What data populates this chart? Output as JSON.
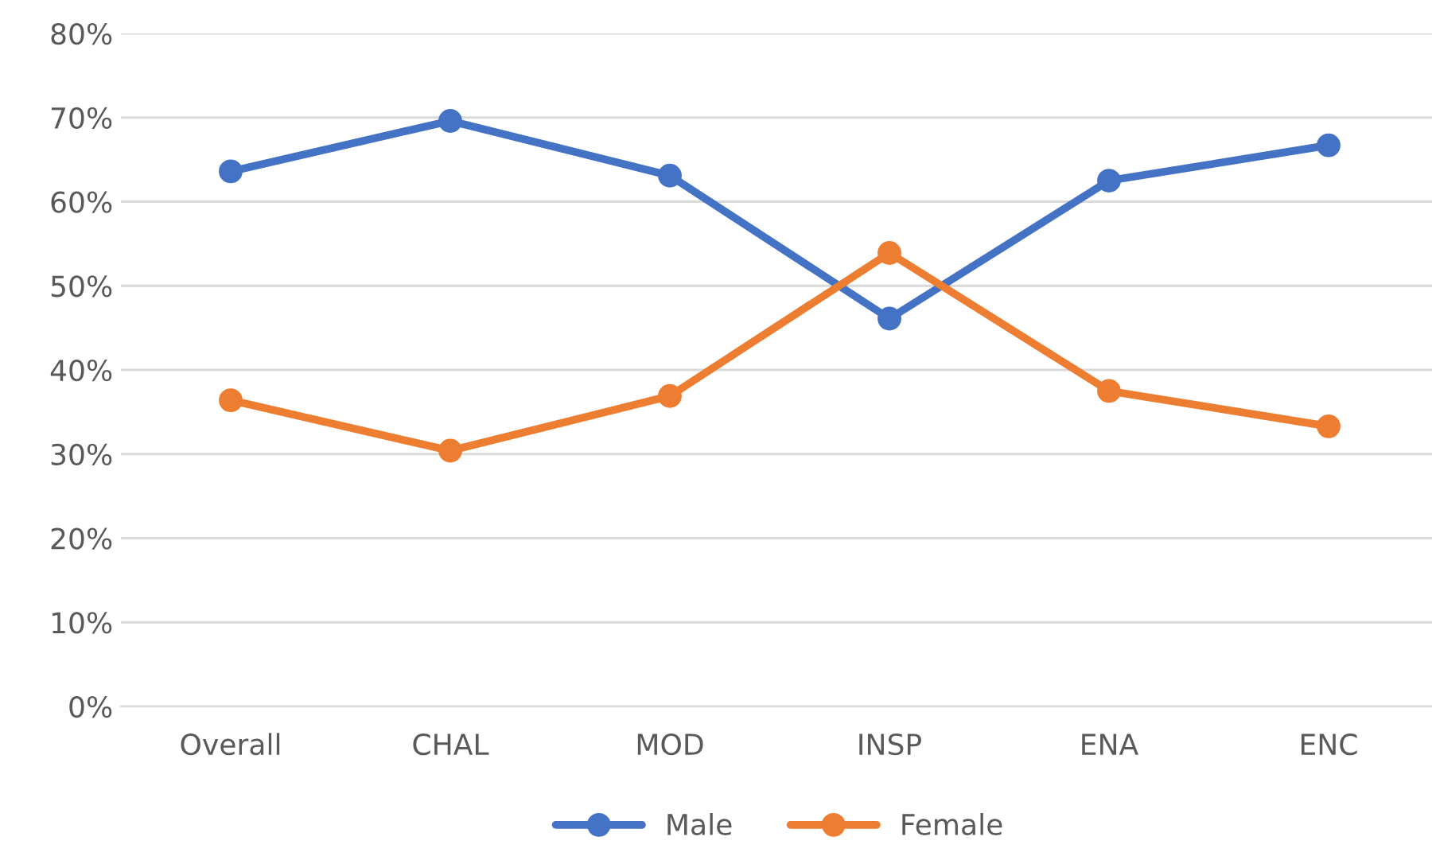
{
  "chart_data": {
    "type": "line",
    "categories": [
      "Overall",
      "CHAL",
      "MOD",
      "INSP",
      "ENA",
      "ENC"
    ],
    "series": [
      {
        "name": "Male",
        "color": "#4472c4",
        "values": [
          63.6,
          69.6,
          63.1,
          46.1,
          62.5,
          66.7
        ]
      },
      {
        "name": "Female",
        "color": "#ed7d31",
        "values": [
          36.4,
          30.4,
          36.9,
          53.9,
          37.5,
          33.3
        ]
      }
    ],
    "ylim": [
      0,
      80
    ],
    "yticks": [
      {
        "value": 0,
        "label": "0%"
      },
      {
        "value": 10,
        "label": "10%"
      },
      {
        "value": 20,
        "label": "20%"
      },
      {
        "value": 30,
        "label": "30%"
      },
      {
        "value": 40,
        "label": "40%"
      },
      {
        "value": 50,
        "label": "50%"
      },
      {
        "value": 60,
        "label": "60%"
      },
      {
        "value": 70,
        "label": "70%"
      },
      {
        "value": 80,
        "label": "80%"
      }
    ],
    "grid": "y",
    "legend": "bottom",
    "marker": "circle",
    "line_style": "solid"
  }
}
